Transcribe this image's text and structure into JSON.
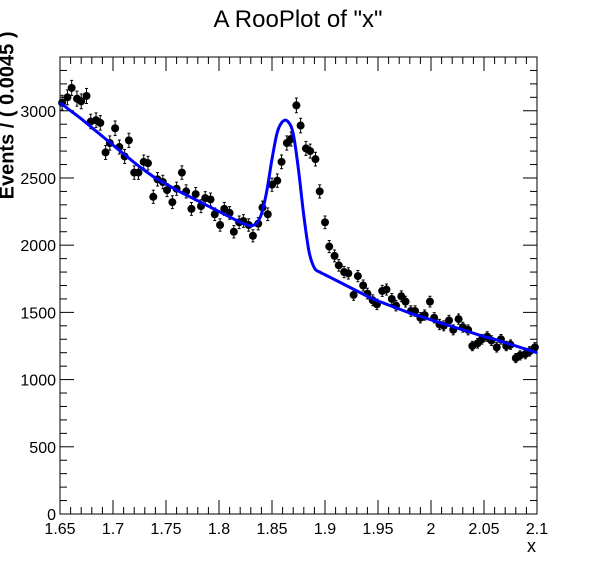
{
  "chart_data": {
    "type": "scatter",
    "title": "A RooPlot of \"x\"",
    "xlabel": "x",
    "ylabel": "Events / ( 0.0045 )",
    "xlim": [
      1.65,
      2.1
    ],
    "ylim": [
      0,
      3400
    ],
    "x_ticks": [
      "1.65",
      "1.7",
      "1.75",
      "1.8",
      "1.85",
      "1.9",
      "1.95",
      "2",
      "2.05",
      "2.1"
    ],
    "y_ticks": [
      "0",
      "500",
      "1000",
      "1500",
      "2000",
      "2500",
      "3000"
    ],
    "grid": false,
    "colors": {
      "points": "#000000",
      "fit": "#0000ff"
    },
    "series": [
      {
        "kind": "points",
        "x": [
          1.652,
          1.657,
          1.661,
          1.666,
          1.67,
          1.675,
          1.679,
          1.684,
          1.688,
          1.693,
          1.697,
          1.702,
          1.706,
          1.711,
          1.715,
          1.72,
          1.724,
          1.729,
          1.733,
          1.738,
          1.742,
          1.747,
          1.751,
          1.756,
          1.76,
          1.765,
          1.769,
          1.774,
          1.778,
          1.783,
          1.787,
          1.792,
          1.796,
          1.801,
          1.805,
          1.81,
          1.814,
          1.819,
          1.823,
          1.828,
          1.832,
          1.837,
          1.841,
          1.846,
          1.85,
          1.855,
          1.859,
          1.864,
          1.868,
          1.873,
          1.877,
          1.882,
          1.886,
          1.891,
          1.895,
          1.9,
          1.904,
          1.909,
          1.913,
          1.918,
          1.922,
          1.927,
          1.931,
          1.936,
          1.94,
          1.945,
          1.949,
          1.954,
          1.958,
          1.963,
          1.967,
          1.972,
          1.976,
          1.981,
          1.985,
          1.99,
          1.994,
          1.999,
          2.003,
          2.008,
          2.012,
          2.017,
          2.021,
          2.026,
          2.03,
          2.035,
          2.039,
          2.044,
          2.048,
          2.053,
          2.057,
          2.062,
          2.066,
          2.071,
          2.075,
          2.08,
          2.084,
          2.089,
          2.093,
          2.098
        ],
        "y": [
          3060,
          3100,
          3170,
          3090,
          3070,
          3110,
          2920,
          2930,
          2910,
          2690,
          2760,
          2870,
          2730,
          2660,
          2780,
          2540,
          2540,
          2620,
          2610,
          2360,
          2490,
          2470,
          2410,
          2320,
          2420,
          2540,
          2400,
          2270,
          2380,
          2290,
          2350,
          2340,
          2230,
          2150,
          2270,
          2240,
          2100,
          2170,
          2180,
          2150,
          2070,
          2160,
          2280,
          2230,
          2450,
          2480,
          2620,
          2760,
          2790,
          3040,
          2890,
          2720,
          2700,
          2640,
          2400,
          2170,
          1990,
          1920,
          1850,
          1800,
          1790,
          1630,
          1770,
          1700,
          1640,
          1590,
          1560,
          1660,
          1670,
          1600,
          1550,
          1620,
          1580,
          1510,
          1510,
          1460,
          1480,
          1580,
          1460,
          1410,
          1400,
          1440,
          1370,
          1450,
          1390,
          1370,
          1250,
          1270,
          1300,
          1320,
          1290,
          1240,
          1300,
          1250,
          1260,
          1160,
          1180,
          1190,
          1210,
          1240
        ],
        "yerr": [
          55,
          56,
          56,
          56,
          55,
          56,
          54,
          54,
          54,
          52,
          53,
          54,
          52,
          52,
          53,
          50,
          50,
          51,
          51,
          49,
          50,
          50,
          49,
          48,
          49,
          50,
          49,
          48,
          49,
          48,
          48,
          48,
          47,
          46,
          48,
          47,
          46,
          47,
          47,
          46,
          45,
          46,
          48,
          47,
          49,
          50,
          51,
          53,
          53,
          55,
          54,
          52,
          52,
          51,
          49,
          47,
          45,
          44,
          43,
          42,
          42,
          40,
          42,
          41,
          40,
          40,
          39,
          41,
          41,
          40,
          39,
          40,
          40,
          39,
          39,
          38,
          38,
          40,
          38,
          38,
          37,
          38,
          37,
          38,
          37,
          37,
          35,
          36,
          36,
          36,
          36,
          35,
          36,
          35,
          35,
          34,
          34,
          35,
          35,
          35
        ]
      },
      {
        "kind": "fit",
        "x": [
          1.65,
          1.66,
          1.67,
          1.68,
          1.69,
          1.7,
          1.71,
          1.72,
          1.73,
          1.74,
          1.75,
          1.76,
          1.77,
          1.78,
          1.79,
          1.8,
          1.81,
          1.815,
          1.82,
          1.825,
          1.83,
          1.835,
          1.84,
          1.845,
          1.85,
          1.855,
          1.86,
          1.865,
          1.87,
          1.875,
          1.88,
          1.885,
          1.89,
          1.895,
          1.9,
          1.91,
          1.92,
          1.93,
          1.94,
          1.95,
          1.96,
          1.97,
          1.98,
          1.99,
          2.0,
          2.01,
          2.02,
          2.03,
          2.04,
          2.05,
          2.06,
          2.07,
          2.08,
          2.09,
          2.1
        ],
        "y": [
          3060,
          3000,
          2940,
          2875,
          2810,
          2745,
          2680,
          2615,
          2555,
          2500,
          2455,
          2410,
          2370,
          2330,
          2290,
          2250,
          2210,
          2190,
          2170,
          2155,
          2145,
          2160,
          2230,
          2400,
          2640,
          2840,
          2920,
          2920,
          2830,
          2560,
          2220,
          1950,
          1830,
          1800,
          1780,
          1740,
          1700,
          1660,
          1620,
          1585,
          1555,
          1525,
          1495,
          1470,
          1445,
          1420,
          1395,
          1370,
          1345,
          1320,
          1300,
          1275,
          1250,
          1225,
          1200
        ]
      }
    ]
  }
}
